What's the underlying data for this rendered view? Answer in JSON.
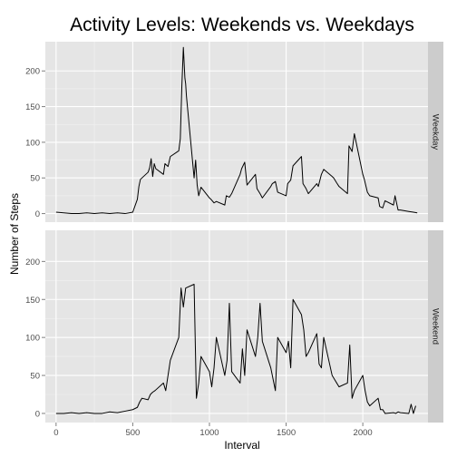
{
  "chart_data": {
    "type": "line",
    "title": "Activity Levels: Weekends vs. Weekdays",
    "xlabel": "Interval",
    "ylabel": "Number of Steps",
    "xlim": [
      -70,
      2425
    ],
    "ylim": [
      -12,
      241
    ],
    "x_ticks": [
      0,
      500,
      1000,
      1500,
      2000
    ],
    "y_ticks": [
      0,
      50,
      100,
      150,
      200
    ],
    "grid": true,
    "line_color": "#000000",
    "panel_background": "#e5e5e5",
    "strip_background": "#cccccc",
    "panels": [
      {
        "label": "Weekday",
        "x": [
          0,
          50,
          100,
          150,
          200,
          250,
          300,
          350,
          400,
          450,
          500,
          530,
          540,
          550,
          600,
          610,
          620,
          630,
          640,
          650,
          700,
          710,
          730,
          745,
          800,
          810,
          820,
          830,
          840,
          845,
          850,
          900,
          910,
          920,
          930,
          945,
          1000,
          1010,
          1030,
          1045,
          1100,
          1110,
          1130,
          1145,
          1200,
          1210,
          1230,
          1245,
          1300,
          1310,
          1330,
          1345,
          1400,
          1410,
          1430,
          1445,
          1500,
          1510,
          1530,
          1545,
          1600,
          1610,
          1630,
          1645,
          1700,
          1710,
          1730,
          1745,
          1800,
          1810,
          1830,
          1845,
          1900,
          1910,
          1930,
          1945,
          2000,
          2010,
          2030,
          2045,
          2100,
          2110,
          2130,
          2145,
          2200,
          2210,
          2230,
          2245,
          2300,
          2330,
          2355
        ],
        "y": [
          2,
          1,
          0,
          0,
          1,
          0,
          1,
          0,
          1,
          0,
          2,
          20,
          38,
          48,
          58,
          64,
          77,
          52,
          70,
          63,
          55,
          70,
          66,
          80,
          88,
          105,
          178,
          233,
          190,
          182,
          165,
          50,
          75,
          40,
          25,
          37,
          22,
          20,
          15,
          17,
          12,
          25,
          23,
          28,
          55,
          63,
          72,
          40,
          55,
          35,
          28,
          22,
          38,
          42,
          45,
          30,
          25,
          42,
          47,
          67,
          80,
          42,
          35,
          28,
          42,
          38,
          55,
          62,
          52,
          50,
          43,
          38,
          28,
          95,
          87,
          112,
          55,
          48,
          30,
          25,
          22,
          10,
          8,
          18,
          12,
          25,
          5,
          5,
          3,
          2,
          1
        ]
      },
      {
        "label": "Weekend",
        "x": [
          0,
          50,
          100,
          150,
          200,
          250,
          300,
          350,
          400,
          450,
          500,
          530,
          545,
          560,
          600,
          615,
          630,
          645,
          700,
          715,
          730,
          745,
          800,
          815,
          830,
          845,
          900,
          915,
          930,
          945,
          1000,
          1015,
          1030,
          1045,
          1100,
          1115,
          1130,
          1145,
          1200,
          1215,
          1230,
          1245,
          1300,
          1315,
          1330,
          1345,
          1400,
          1415,
          1430,
          1445,
          1500,
          1515,
          1530,
          1545,
          1600,
          1615,
          1630,
          1645,
          1700,
          1715,
          1730,
          1745,
          1800,
          1815,
          1830,
          1845,
          1900,
          1915,
          1930,
          1945,
          2000,
          2015,
          2030,
          2045,
          2100,
          2115,
          2130,
          2145,
          2200,
          2215,
          2230,
          2245,
          2300,
          2315,
          2330,
          2345
        ],
        "y": [
          0,
          0,
          1,
          0,
          1,
          0,
          0,
          2,
          1,
          3,
          5,
          8,
          15,
          20,
          18,
          25,
          28,
          30,
          40,
          30,
          50,
          70,
          100,
          165,
          140,
          165,
          170,
          20,
          40,
          75,
          55,
          35,
          60,
          100,
          50,
          70,
          145,
          55,
          40,
          85,
          50,
          110,
          75,
          100,
          145,
          95,
          60,
          45,
          30,
          100,
          80,
          95,
          60,
          150,
          130,
          110,
          75,
          80,
          105,
          65,
          60,
          100,
          50,
          45,
          40,
          35,
          40,
          90,
          20,
          30,
          50,
          30,
          15,
          10,
          20,
          5,
          5,
          0,
          1,
          0,
          2,
          1,
          0,
          12,
          0,
          10
        ]
      }
    ]
  }
}
